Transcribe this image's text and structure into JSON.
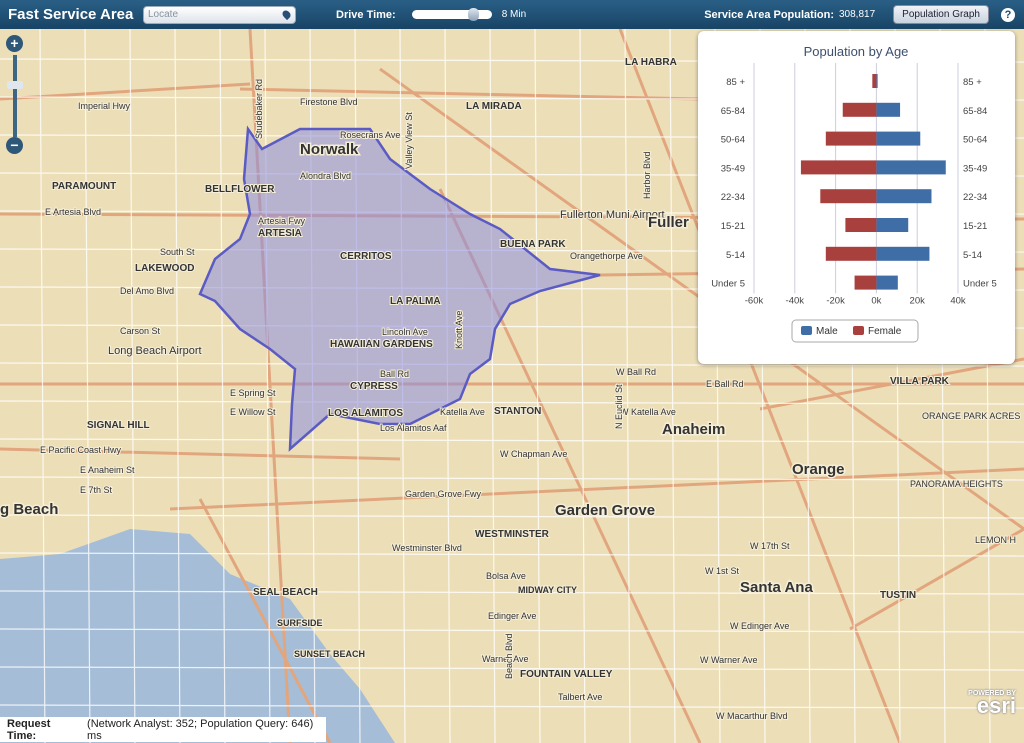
{
  "header": {
    "title": "Fast Service Area",
    "locate_placeholder": "Locate",
    "drive_time_label": "Drive Time:",
    "drive_time_value": "8 Min",
    "drive_time_fraction": 0.8,
    "population_label": "Service Area Population:",
    "population_value": "308,817",
    "population_button": "Population Graph",
    "help": "?"
  },
  "zoom": {
    "in": "+",
    "out": "−"
  },
  "status": {
    "label": "Request Time:",
    "value": "(Network Analyst: 352; Population Query: 646) ms"
  },
  "attribution": {
    "powered": "POWERED BY",
    "brand": "esri"
  },
  "colors": {
    "male": "#3f6ea6",
    "female": "#a8403e",
    "service_area": "#8c8ce0",
    "ocean": "#a5bdd6"
  },
  "map": {
    "labels": [
      "Norwalk",
      "ARTESIA",
      "CERRITOS",
      "LA PALMA",
      "HAWAIIAN GARDENS",
      "CYPRESS",
      "LOS ALAMITOS",
      "BELLFLOWER",
      "LAKEWOOD",
      "PARAMOUNT",
      "Long Beach Airport",
      "SIGNAL HILL",
      "Anaheim",
      "Orange",
      "Garden Grove",
      "Santa Ana",
      "WESTMINSTER",
      "SEAL BEACH",
      "SURFSIDE",
      "SUNSET BEACH",
      "FOUNTAIN VALLEY",
      "MIDWAY CITY",
      "STANTON",
      "BUENA PARK",
      "Fullerton Muni Airport",
      "Fuller",
      "LA MIRADA",
      "LA HABRA",
      "VILLA PARK",
      "TUSTIN",
      "g Beach",
      "Los Alamitos Aaf",
      "Alondra Blvd",
      "South St",
      "Del Amo Blvd",
      "Carson St",
      "Lincoln Ave",
      "Ball Rd",
      "Katella Ave",
      "W Chapman Ave",
      "Garden Grove Fwy",
      "Westminster Blvd",
      "Bolsa Ave",
      "Edinger Ave",
      "Warner Ave",
      "Talbert Ave",
      "Orangethorpe Ave",
      "E Artesia Blvd",
      "Rosecrans Ave",
      "Imperial Hwy",
      "Firestone Blvd",
      "E Pacific Coast Hwy",
      "E Anaheim St",
      "E 7th St",
      "W Ball Rd",
      "W Katella Ave",
      "E Ball Rd",
      "ORANGE PARK ACRES",
      "PANORAMA HEIGHTS",
      "LEMON H",
      "W 17th St",
      "W 1st St",
      "W Edinger Ave",
      "W Warner Ave",
      "W Macarthur Blvd",
      "Artesia Fwy",
      "Studebaker Rd",
      "Valley View St",
      "Knott Ave",
      "Beach Blvd",
      "Harbor Blvd",
      "N Euclid St",
      "E Spring St",
      "E Willow St"
    ]
  },
  "chart_data": {
    "type": "bar",
    "title": "Population by Age",
    "categories": [
      "85 +",
      "65-84",
      "50-64",
      "35-49",
      "22-34",
      "15-21",
      "5-14",
      "Under 5"
    ],
    "series": [
      {
        "name": "Male",
        "values": [
          600,
          11600,
          21500,
          34000,
          27000,
          15600,
          26000,
          10500
        ]
      },
      {
        "name": "Female",
        "values": [
          -2000,
          -16500,
          -24800,
          -37000,
          -27500,
          -15200,
          -24800,
          -10700
        ]
      }
    ],
    "xlim": [
      -60000,
      40000
    ],
    "ticks": [
      "-60k",
      "-40k",
      "-20k",
      "0k",
      "20k",
      "40k"
    ],
    "tick_values": [
      -60000,
      -40000,
      -20000,
      0,
      20000,
      40000
    ],
    "legend": "bottom",
    "grid": true
  }
}
